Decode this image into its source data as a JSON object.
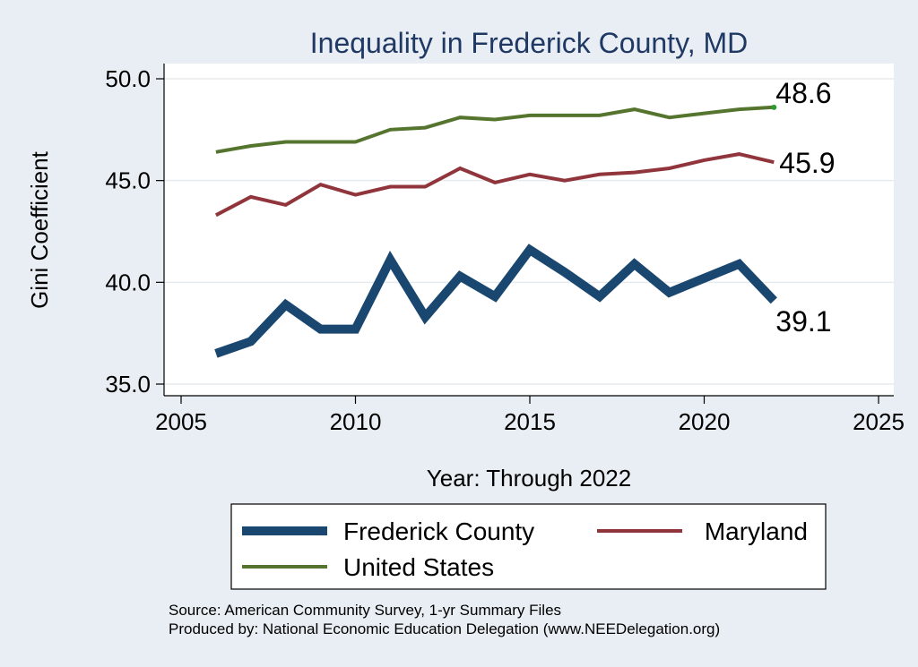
{
  "chart_data": {
    "type": "line",
    "title": "Inequality in Frederick County, MD",
    "xlabel": "Year: Through 2022",
    "ylabel": "Gini Coefficient",
    "xlim": [
      2005,
      2025
    ],
    "ylim": [
      35,
      50
    ],
    "xticks": [
      "2005",
      "2010",
      "2015",
      "2020",
      "2025"
    ],
    "yticks": [
      "35.0",
      "40.0",
      "45.0",
      "50.0"
    ],
    "grid": true,
    "legend_position": "bottom",
    "x": [
      2006,
      2007,
      2008,
      2009,
      2010,
      2011,
      2012,
      2013,
      2014,
      2015,
      2016,
      2017,
      2018,
      2019,
      2020,
      2021,
      2022
    ],
    "series": [
      {
        "name": "Frederick County",
        "color": "#1a476f",
        "end_label": "39.1",
        "values": [
          36.5,
          37.1,
          38.9,
          37.7,
          37.7,
          41.1,
          38.3,
          40.3,
          39.3,
          41.6,
          40.5,
          39.3,
          40.9,
          39.5,
          40.2,
          40.9,
          39.1
        ]
      },
      {
        "name": "Maryland",
        "color": "#90353b",
        "end_label": "45.9",
        "values": [
          43.3,
          44.2,
          43.8,
          44.8,
          44.3,
          44.7,
          44.7,
          45.6,
          44.9,
          45.3,
          45.0,
          45.3,
          45.4,
          45.6,
          46.0,
          46.3,
          45.9
        ]
      },
      {
        "name": "United States",
        "color": "#55752f",
        "end_label": "48.6",
        "values": [
          46.4,
          46.7,
          46.9,
          46.9,
          46.9,
          47.5,
          47.6,
          48.1,
          48.0,
          48.2,
          48.2,
          48.2,
          48.5,
          48.1,
          48.3,
          48.5,
          48.6
        ]
      }
    ]
  },
  "source_lines": [
    "Source: American Community Survey, 1-yr Summary Files",
    "Produced by: National Economic Education Delegation (www.NEEDelegation.org)"
  ]
}
